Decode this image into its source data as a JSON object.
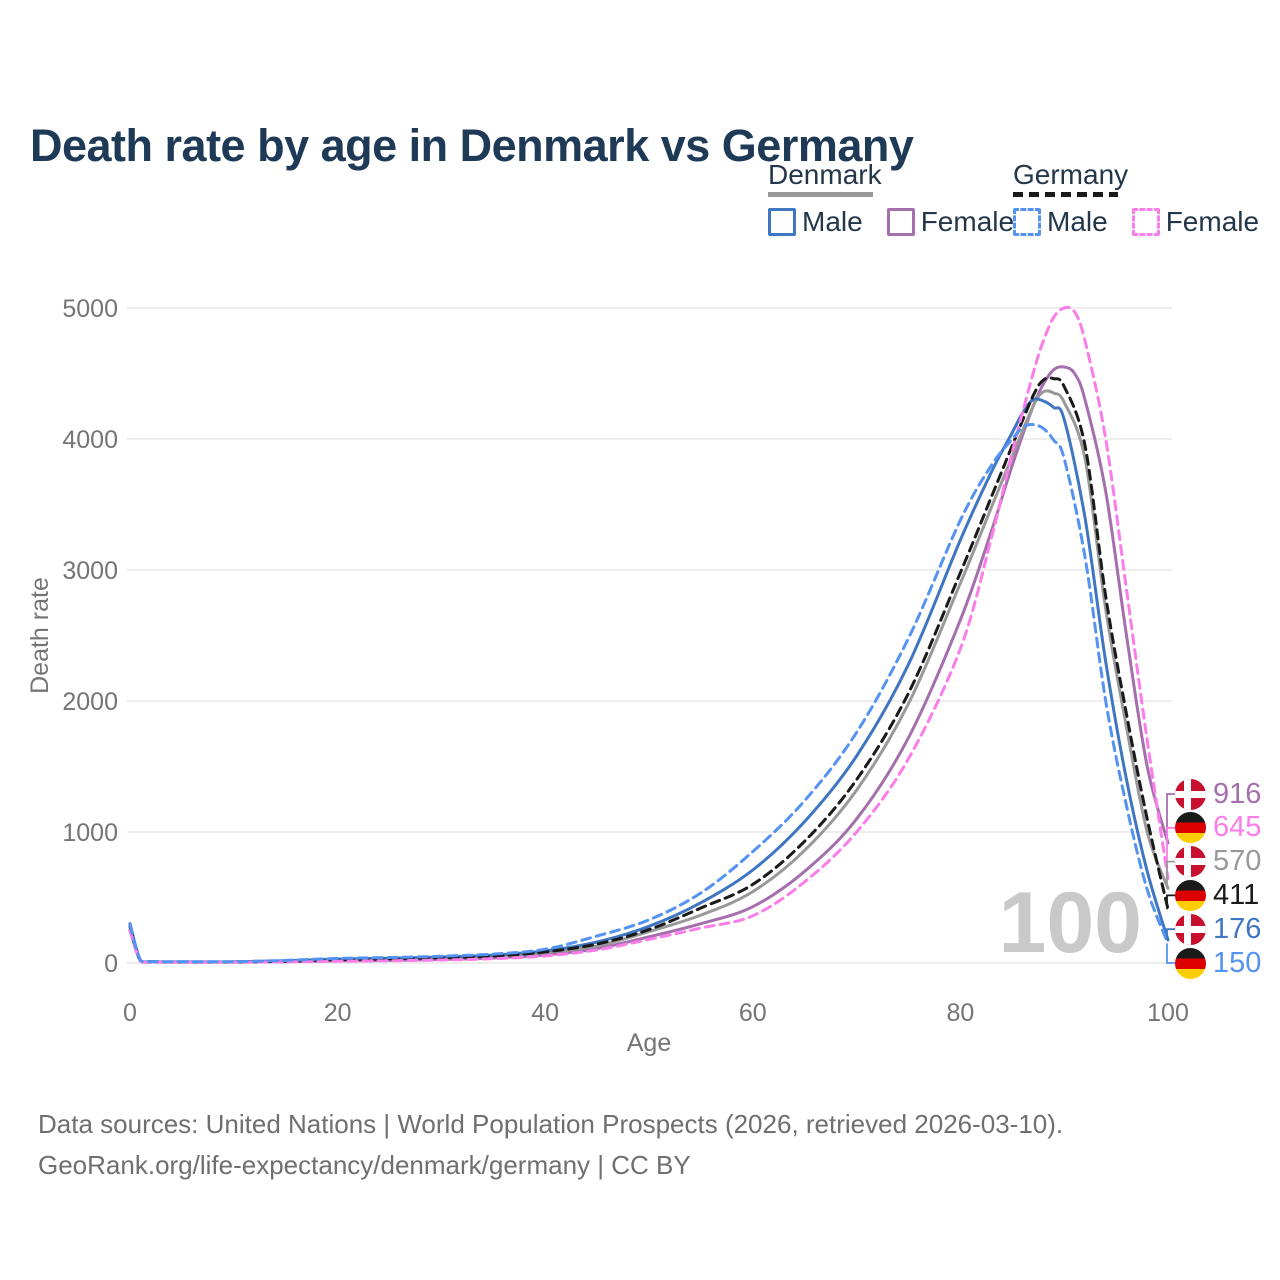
{
  "title": "Death rate by age in Denmark vs Germany",
  "colors": {
    "title_text": "#1e3a56",
    "legend_text": "#24364a",
    "axis_text": "#757575",
    "grid": "#e9e9e9",
    "watermark": "#c9c9c9",
    "footer_text": "#6f6f6f"
  },
  "legend": {
    "groups": [
      {
        "id": "denmark",
        "label": "Denmark",
        "line_style": "solid",
        "line_color": "#999999",
        "items": [
          {
            "series": "dk-male",
            "label": "Male"
          },
          {
            "series": "dk-female",
            "label": "Female"
          }
        ]
      },
      {
        "id": "germany",
        "label": "Germany",
        "line_style": "dashed",
        "line_color": "#1a1a1a",
        "items": [
          {
            "series": "de-male",
            "label": "Male"
          },
          {
            "series": "de-female",
            "label": "Female"
          }
        ]
      }
    ]
  },
  "chart_data": {
    "type": "line",
    "title": "Death rate by age in Denmark vs Germany",
    "xlabel": "Age",
    "ylabel": "Death rate",
    "xlim": [
      0,
      100
    ],
    "ylim": [
      0,
      5000
    ],
    "x_ticks": [
      0,
      20,
      40,
      60,
      80,
      100
    ],
    "y_ticks": [
      0,
      1000,
      2000,
      3000,
      4000,
      5000
    ],
    "grid": "horizontal-only",
    "legend_position": "top-right",
    "watermark": "100",
    "series": [
      {
        "id": "dk-female",
        "country": "Denmark",
        "group": "Female",
        "color": "#a56fad",
        "dashed": false,
        "flag": "denmark-flag-icon",
        "end_label": "916",
        "points": [
          [
            0,
            255
          ],
          [
            1,
            15
          ],
          [
            2,
            8
          ],
          [
            5,
            7
          ],
          [
            10,
            7
          ],
          [
            15,
            10
          ],
          [
            20,
            16
          ],
          [
            25,
            20
          ],
          [
            30,
            27
          ],
          [
            35,
            38
          ],
          [
            40,
            62
          ],
          [
            45,
            110
          ],
          [
            50,
            200
          ],
          [
            55,
            300
          ],
          [
            60,
            430
          ],
          [
            65,
            700
          ],
          [
            70,
            1100
          ],
          [
            75,
            1720
          ],
          [
            80,
            2620
          ],
          [
            83,
            3300
          ],
          [
            85,
            3800
          ],
          [
            87,
            4250
          ],
          [
            88,
            4420
          ],
          [
            89,
            4530
          ],
          [
            90,
            4550
          ],
          [
            91,
            4500
          ],
          [
            92,
            4300
          ],
          [
            94,
            3600
          ],
          [
            96,
            2500
          ],
          [
            98,
            1500
          ],
          [
            100,
            916
          ]
        ]
      },
      {
        "id": "de-female",
        "country": "Germany",
        "group": "Female",
        "color": "#fb7de9",
        "dashed": true,
        "flag": "germany-flag-icon",
        "end_label": "645",
        "points": [
          [
            0,
            245
          ],
          [
            1,
            14
          ],
          [
            2,
            7
          ],
          [
            5,
            6
          ],
          [
            10,
            6
          ],
          [
            15,
            9
          ],
          [
            20,
            13
          ],
          [
            25,
            17
          ],
          [
            30,
            23
          ],
          [
            35,
            33
          ],
          [
            40,
            54
          ],
          [
            45,
            100
          ],
          [
            50,
            180
          ],
          [
            55,
            267
          ],
          [
            60,
            360
          ],
          [
            65,
            620
          ],
          [
            70,
            1000
          ],
          [
            75,
            1560
          ],
          [
            80,
            2400
          ],
          [
            83,
            3250
          ],
          [
            85,
            3900
          ],
          [
            87,
            4500
          ],
          [
            88,
            4750
          ],
          [
            89,
            4930
          ],
          [
            90,
            5000
          ],
          [
            91,
            4970
          ],
          [
            92,
            4750
          ],
          [
            94,
            4000
          ],
          [
            96,
            2850
          ],
          [
            98,
            1700
          ],
          [
            100,
            645
          ]
        ]
      },
      {
        "id": "dk-all",
        "country": "Denmark",
        "group": "Both sexes",
        "color": "#999999",
        "dashed": false,
        "flag": "denmark-flag-icon",
        "end_label": "570",
        "points": [
          [
            0,
            285
          ],
          [
            1,
            17
          ],
          [
            2,
            9
          ],
          [
            5,
            8
          ],
          [
            10,
            8
          ],
          [
            15,
            13
          ],
          [
            20,
            23
          ],
          [
            25,
            29
          ],
          [
            30,
            37
          ],
          [
            35,
            50
          ],
          [
            40,
            80
          ],
          [
            45,
            130
          ],
          [
            50,
            240
          ],
          [
            55,
            366
          ],
          [
            60,
            545
          ],
          [
            65,
            860
          ],
          [
            70,
            1320
          ],
          [
            75,
            1980
          ],
          [
            80,
            2900
          ],
          [
            83,
            3480
          ],
          [
            85,
            3870
          ],
          [
            87,
            4250
          ],
          [
            88,
            4360
          ],
          [
            89,
            4350
          ],
          [
            90,
            4280
          ],
          [
            92,
            3850
          ],
          [
            94,
            2700
          ],
          [
            96,
            1800
          ],
          [
            98,
            1000
          ],
          [
            100,
            570
          ]
        ]
      },
      {
        "id": "de-all",
        "country": "Germany",
        "group": "Both sexes",
        "color": "#1a1a1a",
        "dashed": true,
        "flag": "germany-flag-icon",
        "end_label": "411",
        "points": [
          [
            0,
            280
          ],
          [
            1,
            18
          ],
          [
            2,
            9
          ],
          [
            5,
            8
          ],
          [
            10,
            8
          ],
          [
            15,
            14
          ],
          [
            20,
            25
          ],
          [
            25,
            31
          ],
          [
            30,
            40
          ],
          [
            35,
            53
          ],
          [
            40,
            85
          ],
          [
            45,
            145
          ],
          [
            50,
            255
          ],
          [
            55,
            420
          ],
          [
            60,
            600
          ],
          [
            65,
            930
          ],
          [
            70,
            1400
          ],
          [
            75,
            2060
          ],
          [
            80,
            2980
          ],
          [
            83,
            3560
          ],
          [
            85,
            3950
          ],
          [
            87,
            4330
          ],
          [
            88,
            4450
          ],
          [
            89,
            4460
          ],
          [
            90,
            4400
          ],
          [
            92,
            3950
          ],
          [
            94,
            2800
          ],
          [
            96,
            1900
          ],
          [
            98,
            1100
          ],
          [
            100,
            411
          ]
        ]
      },
      {
        "id": "dk-male",
        "country": "Denmark",
        "group": "Male",
        "color": "#3f76c2",
        "dashed": false,
        "flag": "denmark-flag-icon",
        "end_label": "176",
        "points": [
          [
            0,
            300
          ],
          [
            1,
            20
          ],
          [
            2,
            10
          ],
          [
            5,
            9
          ],
          [
            10,
            9
          ],
          [
            15,
            17
          ],
          [
            20,
            30
          ],
          [
            25,
            37
          ],
          [
            30,
            46
          ],
          [
            35,
            60
          ],
          [
            40,
            92
          ],
          [
            45,
            160
          ],
          [
            50,
            280
          ],
          [
            55,
            460
          ],
          [
            60,
            710
          ],
          [
            65,
            1080
          ],
          [
            70,
            1580
          ],
          [
            75,
            2280
          ],
          [
            80,
            3230
          ],
          [
            83,
            3750
          ],
          [
            85,
            4050
          ],
          [
            86,
            4200
          ],
          [
            87,
            4300
          ],
          [
            88,
            4290
          ],
          [
            89,
            4240
          ],
          [
            90,
            4150
          ],
          [
            92,
            3400
          ],
          [
            94,
            2300
          ],
          [
            96,
            1400
          ],
          [
            98,
            700
          ],
          [
            100,
            176
          ]
        ]
      },
      {
        "id": "de-male",
        "country": "Germany",
        "group": "Male",
        "color": "#5493f2",
        "dashed": true,
        "flag": "germany-flag-icon",
        "end_label": "150",
        "points": [
          [
            0,
            290
          ],
          [
            1,
            22
          ],
          [
            2,
            11
          ],
          [
            5,
            10
          ],
          [
            10,
            10
          ],
          [
            15,
            20
          ],
          [
            20,
            35
          ],
          [
            25,
            42
          ],
          [
            30,
            52
          ],
          [
            35,
            68
          ],
          [
            40,
            105
          ],
          [
            45,
            206
          ],
          [
            50,
            330
          ],
          [
            55,
            535
          ],
          [
            60,
            850
          ],
          [
            65,
            1240
          ],
          [
            70,
            1760
          ],
          [
            75,
            2480
          ],
          [
            80,
            3380
          ],
          [
            83,
            3800
          ],
          [
            85,
            4000
          ],
          [
            86,
            4090
          ],
          [
            87,
            4110
          ],
          [
            88,
            4080
          ],
          [
            89,
            3990
          ],
          [
            90,
            3850
          ],
          [
            92,
            3100
          ],
          [
            94,
            2000
          ],
          [
            96,
            1200
          ],
          [
            98,
            560
          ],
          [
            100,
            150
          ]
        ]
      }
    ]
  },
  "footer": {
    "line1": "Data sources: United Nations | World Population Prospects (2026, retrieved 2026-03-10).",
    "line2": "GeoRank.org/life-expectancy/denmark/germany | CC BY"
  }
}
